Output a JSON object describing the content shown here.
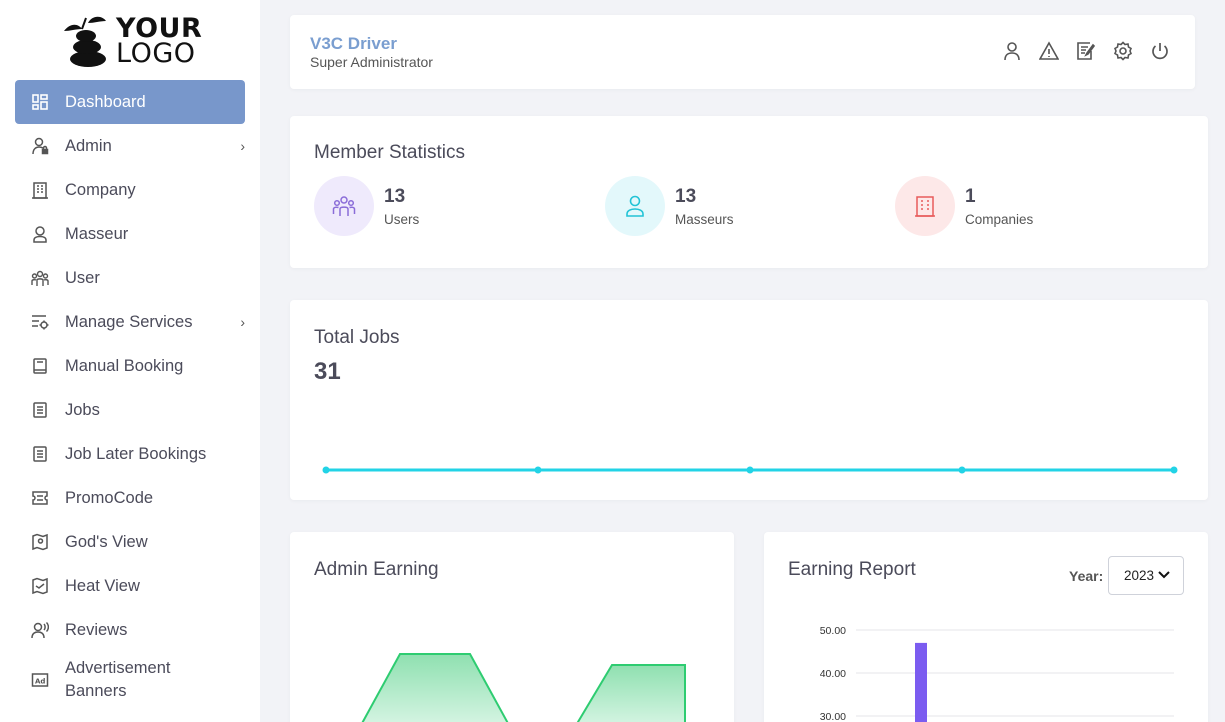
{
  "logo": {
    "line1": "YOUR",
    "line2": "LOGO"
  },
  "sidebar": {
    "items": [
      {
        "label": "Dashboard",
        "icon": "dashboard-icon",
        "active": true
      },
      {
        "label": "Admin",
        "icon": "admin-user-icon",
        "has_submenu": true
      },
      {
        "label": "Company",
        "icon": "building-icon"
      },
      {
        "label": "Masseur",
        "icon": "person-icon"
      },
      {
        "label": "User",
        "icon": "users-icon"
      },
      {
        "label": "Manage Services",
        "icon": "services-settings-icon",
        "has_submenu": true
      },
      {
        "label": "Manual Booking",
        "icon": "book-icon"
      },
      {
        "label": "Jobs",
        "icon": "list-icon"
      },
      {
        "label": "Job Later Bookings",
        "icon": "list-icon"
      },
      {
        "label": "PromoCode",
        "icon": "ticket-icon"
      },
      {
        "label": "God's View",
        "icon": "map-pin-icon"
      },
      {
        "label": "Heat View",
        "icon": "map-icon"
      },
      {
        "label": "Reviews",
        "icon": "review-voice-icon"
      },
      {
        "label": "Advertisement Banners",
        "icon": "ad-icon"
      }
    ]
  },
  "header": {
    "name": "V3C Driver",
    "role": "Super Administrator",
    "icons": [
      "profile-icon",
      "alert-triangle-icon",
      "edit-note-icon",
      "settings-gear-icon",
      "power-icon"
    ]
  },
  "member_stats": {
    "title": "Member Statistics",
    "stats": [
      {
        "value": "13",
        "label": "Users",
        "color": "#8a6cd8",
        "bg": "#efeafc"
      },
      {
        "value": "13",
        "label": "Masseurs",
        "color": "#22c3d6",
        "bg": "#e3f8fb"
      },
      {
        "value": "1",
        "label": "Companies",
        "color": "#e85a5a",
        "bg": "#fde8e8"
      }
    ]
  },
  "total_jobs": {
    "title": "Total Jobs",
    "value": "31",
    "color": "#22d3e6"
  },
  "admin_earning": {
    "title": "Admin Earning",
    "color": "#2ecc71"
  },
  "earning_report": {
    "title": "Earning Report",
    "year_label": "Year:",
    "year_value": "2023",
    "bar_color": "#7b5cf0"
  },
  "chart_data": [
    {
      "type": "line",
      "title": "Total Jobs",
      "x": [
        0,
        1,
        2,
        3,
        4
      ],
      "values": [
        0,
        0,
        0,
        0,
        0
      ]
    },
    {
      "type": "area",
      "title": "Admin Earning",
      "note_values": "partially visible"
    },
    {
      "type": "bar",
      "title": "Earning Report",
      "y_ticks": [
        "50.00",
        "40.00",
        "30.00"
      ],
      "ylim_visible": [
        30,
        50
      ],
      "values": [
        47
      ],
      "grid": true
    }
  ]
}
